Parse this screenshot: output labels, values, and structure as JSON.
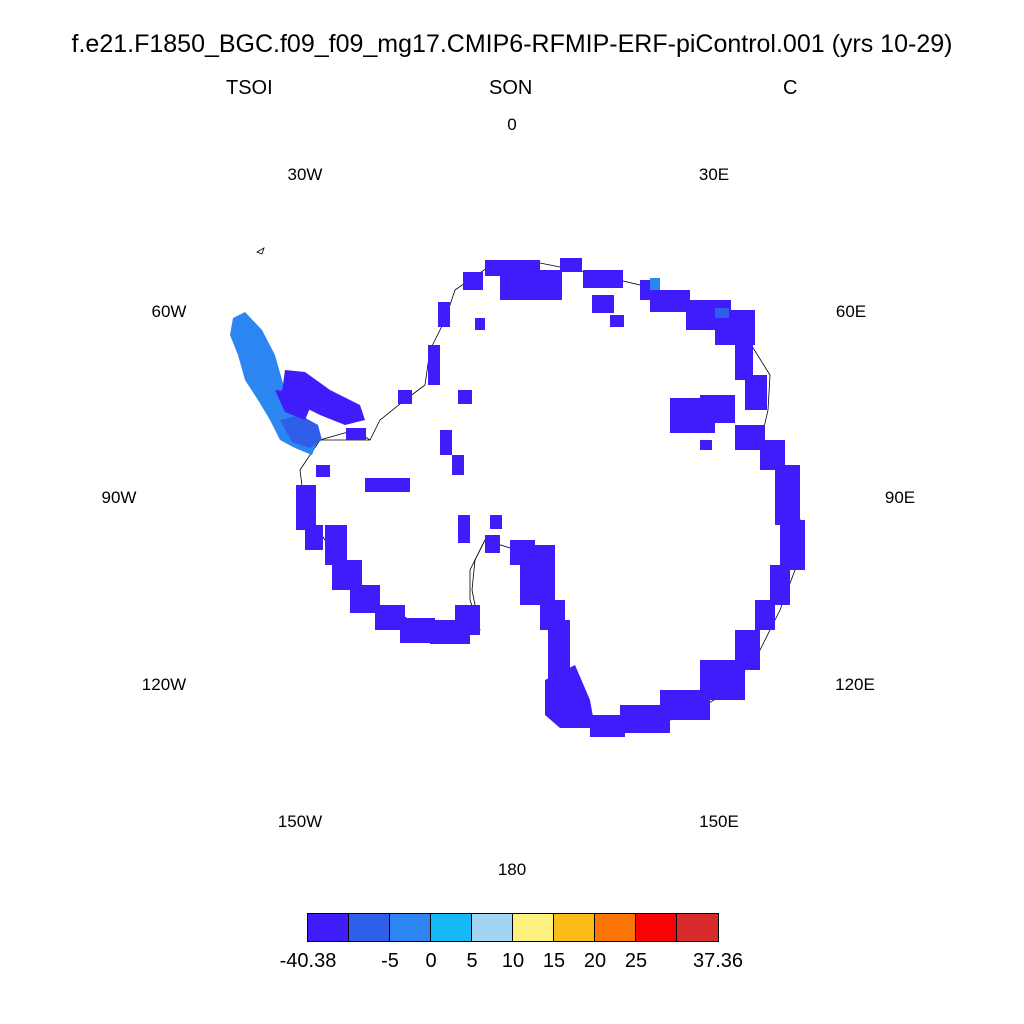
{
  "figure": {
    "title": "f.e21.F1850_BGC.f09_f09_mg17.CMIP6-RFMIP-ERF-piControl.001 (yrs 10-29)",
    "left_string": "TSOI",
    "center_string": "SON",
    "right_string": "C"
  },
  "map": {
    "projection": "south-polar-stereographic",
    "longitude_labels": [
      "0",
      "30E",
      "60E",
      "90E",
      "120E",
      "150E",
      "180",
      "150W",
      "120W",
      "90W",
      "60W",
      "30W"
    ],
    "coastline_color": "#000000",
    "dominant_fill": "#3f1dfb",
    "peninsula_fills": [
      "#2b86f2",
      "#2f5ee8"
    ]
  },
  "colorbar": {
    "colors": [
      "#3f1dfb",
      "#2f5ee8",
      "#2b86f2",
      "#17b8f7",
      "#a4d5f0",
      "#fff17d",
      "#fbbb18",
      "#fb7408",
      "#fb0202",
      "#d82b2b"
    ],
    "labels": [
      "-40.38",
      "-5",
      "0",
      "5",
      "10",
      "15",
      "20",
      "25",
      "37.36"
    ]
  }
}
